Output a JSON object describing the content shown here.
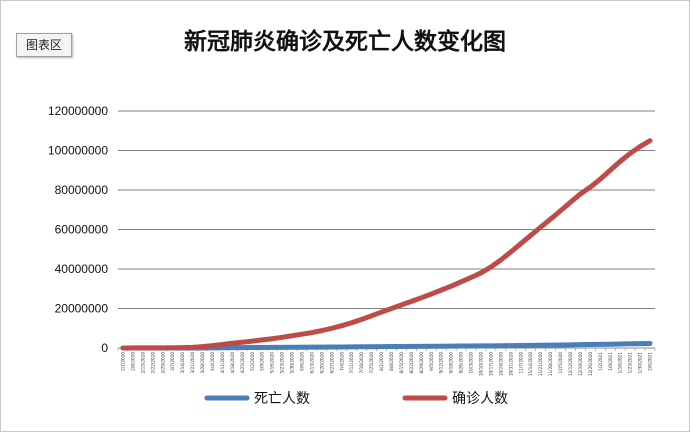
{
  "chart_area_label": "图表区",
  "chart_data": {
    "type": "line",
    "title": "新冠肺炎确诊及死亡人数变化图",
    "xlabel": "",
    "ylabel": "",
    "ylim": [
      0,
      120000000
    ],
    "yticks": [
      0,
      20000000,
      40000000,
      60000000,
      80000000,
      100000000,
      120000000
    ],
    "ytick_labels": [
      "0",
      "20000000",
      "40000000",
      "60000000",
      "80000000",
      "100000000",
      "120000000"
    ],
    "grid": true,
    "legend_position": "bottom",
    "categories": [
      "2/1/2020",
      "2/8/2020",
      "2/15/2020",
      "2/22/2020",
      "2/29/2020",
      "3/7/2020",
      "3/14/2020",
      "3/21/2020",
      "3/28/2020",
      "4/4/2020",
      "4/11/2020",
      "4/18/2020",
      "4/25/2020",
      "5/2/2020",
      "5/9/2020",
      "5/16/2020",
      "5/23/2020",
      "5/30/2020",
      "6/6/2020",
      "6/13/2020",
      "6/20/2020",
      "6/27/2020",
      "7/4/2020",
      "7/11/2020",
      "7/18/2020",
      "7/25/2020",
      "8/1/2020",
      "8/8/2020",
      "8/15/2020",
      "8/22/2020",
      "8/29/2020",
      "9/5/2020",
      "9/12/2020",
      "9/19/2020",
      "9/26/2020",
      "10/3/2020",
      "10/10/2020",
      "10/17/2020",
      "10/24/2020",
      "10/31/2020",
      "11/7/2020",
      "11/14/2020",
      "11/21/2020",
      "11/28/2020",
      "12/5/2020",
      "12/12/2020",
      "12/19/2020",
      "12/26/2020",
      "1/2/2021",
      "1/9/2021",
      "1/16/2021",
      "1/23/2021",
      "1/30/2021",
      "2/6/2021"
    ],
    "series": [
      {
        "name": "死亡人数",
        "color": "#4a7ebb",
        "values": [
          300,
          800,
          1700,
          2600,
          3000,
          3800,
          6000,
          13000,
          30000,
          60000,
          110000,
          160000,
          200000,
          240000,
          275000,
          310000,
          340000,
          370000,
          400000,
          430000,
          460000,
          495000,
          530000,
          565000,
          610000,
          650000,
          690000,
          730000,
          770000,
          810000,
          850000,
          880000,
          915000,
          950000,
          990000,
          1030000,
          1070000,
          1100000,
          1140000,
          1180000,
          1240000,
          1300000,
          1380000,
          1450000,
          1530000,
          1600000,
          1680000,
          1750000,
          1830000,
          1930000,
          2040000,
          2130000,
          2220000,
          2300000
        ]
      },
      {
        "name": "确诊人数",
        "color": "#be4b48",
        "values": [
          12000,
          35000,
          70000,
          78000,
          86000,
          105000,
          170000,
          340000,
          720000,
          1200000,
          1800000,
          2400000,
          2900000,
          3500000,
          4100000,
          4700000,
          5400000,
          6200000,
          7000000,
          7800000,
          8800000,
          10000000,
          11300000,
          12800000,
          14500000,
          16300000,
          18200000,
          20000000,
          21800000,
          23600000,
          25400000,
          27300000,
          29300000,
          31300000,
          33500000,
          35700000,
          38000000,
          41000000,
          44600000,
          48600000,
          52800000,
          57000000,
          61200000,
          65300000,
          69500000,
          73800000,
          78000000,
          81500000,
          85500000,
          90000000,
          94500000,
          98500000,
          102000000,
          105000000
        ]
      }
    ]
  }
}
